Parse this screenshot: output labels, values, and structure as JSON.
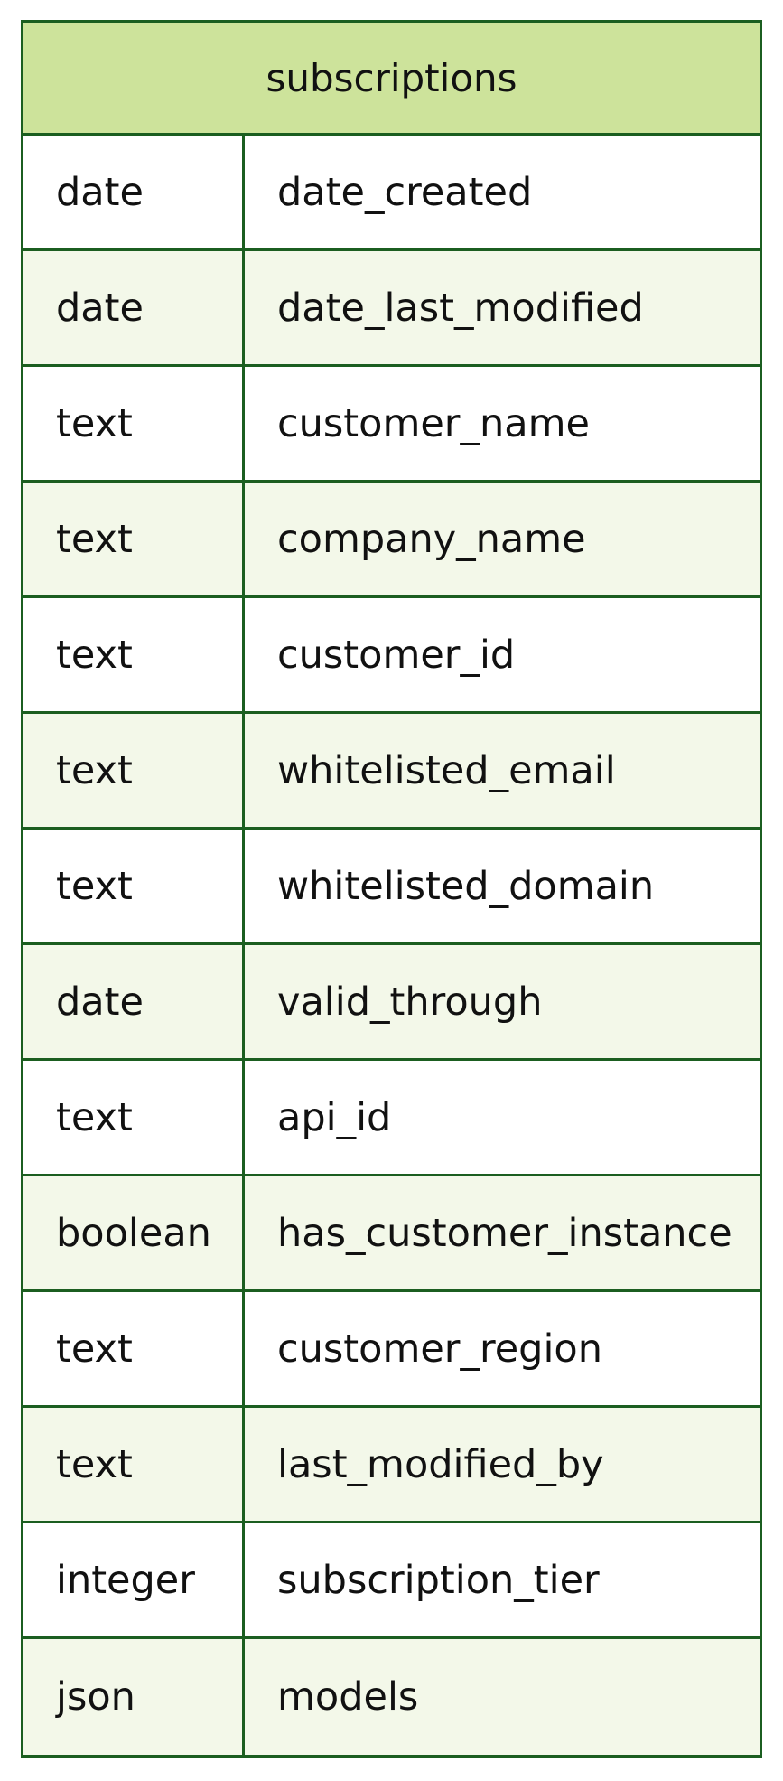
{
  "entity": {
    "name": "subscriptions",
    "attributes": [
      {
        "type": "date",
        "name": "date_created"
      },
      {
        "type": "date",
        "name": "date_last_modified"
      },
      {
        "type": "text",
        "name": "customer_name"
      },
      {
        "type": "text",
        "name": "company_name"
      },
      {
        "type": "text",
        "name": "customer_id"
      },
      {
        "type": "text",
        "name": "whitelisted_email"
      },
      {
        "type": "text",
        "name": "whitelisted_domain"
      },
      {
        "type": "date",
        "name": "valid_through"
      },
      {
        "type": "text",
        "name": "api_id"
      },
      {
        "type": "boolean",
        "name": "has_customer_instance"
      },
      {
        "type": "text",
        "name": "customer_region"
      },
      {
        "type": "text",
        "name": "last_modified_by"
      },
      {
        "type": "integer",
        "name": "subscription_tier"
      },
      {
        "type": "json",
        "name": "models"
      }
    ]
  },
  "colors": {
    "border": "#1b5e20",
    "header_fill": "#cde39b",
    "alt_row_fill": "#f3f8e9",
    "row_fill": "#ffffff"
  }
}
